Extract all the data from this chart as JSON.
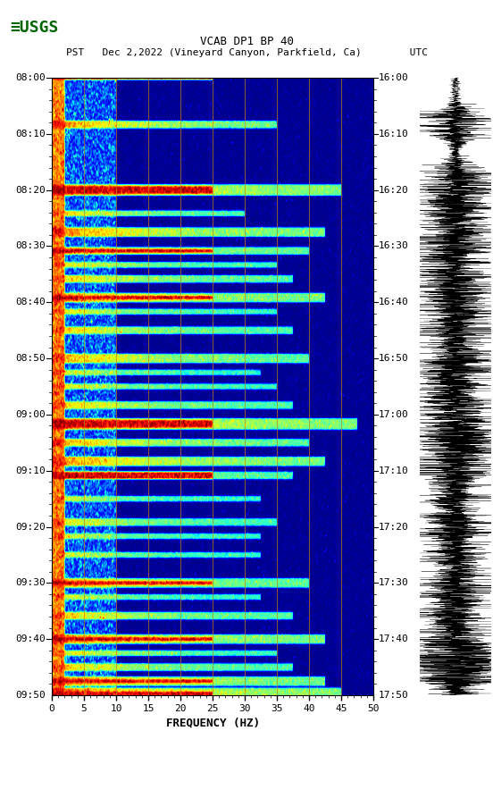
{
  "title_line1": "VCAB DP1 BP 40",
  "title_line2": "PST   Dec 2,2022 (Vineyard Canyon, Parkfield, Ca)        UTC",
  "xlabel": "FREQUENCY (HZ)",
  "freq_min": 0,
  "freq_max": 50,
  "freq_ticks": [
    0,
    5,
    10,
    15,
    20,
    25,
    30,
    35,
    40,
    45,
    50
  ],
  "time_ticks_left": [
    "08:00",
    "08:10",
    "08:20",
    "08:30",
    "08:40",
    "08:50",
    "09:00",
    "09:10",
    "09:20",
    "09:30",
    "09:40",
    "09:50"
  ],
  "time_ticks_right": [
    "16:00",
    "16:10",
    "16:20",
    "16:30",
    "16:40",
    "16:50",
    "17:00",
    "17:10",
    "17:20",
    "17:30",
    "17:40",
    "17:50"
  ],
  "num_time_bins": 660,
  "num_freq_bins": 500,
  "fig_width": 5.52,
  "fig_height": 8.93,
  "background_color": "#ffffff",
  "colormap": "jet",
  "vmin": 0.0,
  "vmax": 1.0,
  "vertical_lines_freq": [
    5,
    10,
    15,
    20,
    25,
    30,
    35,
    40,
    45
  ],
  "vertical_line_color": "#b8860b",
  "usgs_text_color": "#006400",
  "title_fontsize": 9,
  "tick_fontsize": 8,
  "axis_label_fontsize": 9
}
